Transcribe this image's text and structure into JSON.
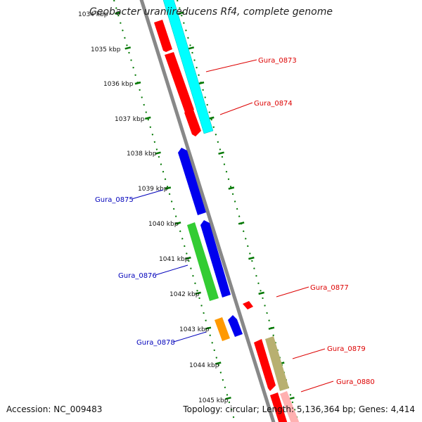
{
  "title": "Geobacter uraniireducens Rf4, complete genome",
  "accession_label": "Accession: NC_009483",
  "summary_label": "Topology: circular; Length: 5,136,364 bp; Genes: 4,414",
  "colors": {
    "backbone": "#888888",
    "tick_green": "#007700",
    "label_red": "#dd0000",
    "label_blue": "#0000bb",
    "gene_red": "#ff0000",
    "gene_cyan": "#00ffff",
    "gene_blue": "#0000ee",
    "gene_green": "#33cc33",
    "gene_orange": "#ff9900",
    "gene_tan": "#b8b070"
  },
  "axis": {
    "kbp_labels": [
      "1034 kbp",
      "1035 kbp",
      "1036 kbp",
      "1037 kbp",
      "1038 kbp",
      "1039 kbp",
      "1040 kbp",
      "1041 kbp",
      "1042 kbp",
      "1043 kbp",
      "1044 kbp",
      "1045 kbp"
    ]
  },
  "genes": [
    {
      "name": "Gura_0873",
      "strand": "forward",
      "color": "cyan"
    },
    {
      "name": "Gura_0874",
      "strand": "forward",
      "color": "red"
    },
    {
      "name": "Gura_0875",
      "strand": "reverse",
      "color": "blue"
    },
    {
      "name": "Gura_0876",
      "strand": "reverse",
      "color": "green"
    },
    {
      "name": "Gura_0877",
      "strand": "forward",
      "color": "red"
    },
    {
      "name": "Gura_0878",
      "strand": "reverse",
      "color": "orange"
    },
    {
      "name": "Gura_0879",
      "strand": "forward",
      "color": "red"
    },
    {
      "name": "Gura_0880",
      "strand": "forward",
      "color": "tan"
    }
  ]
}
